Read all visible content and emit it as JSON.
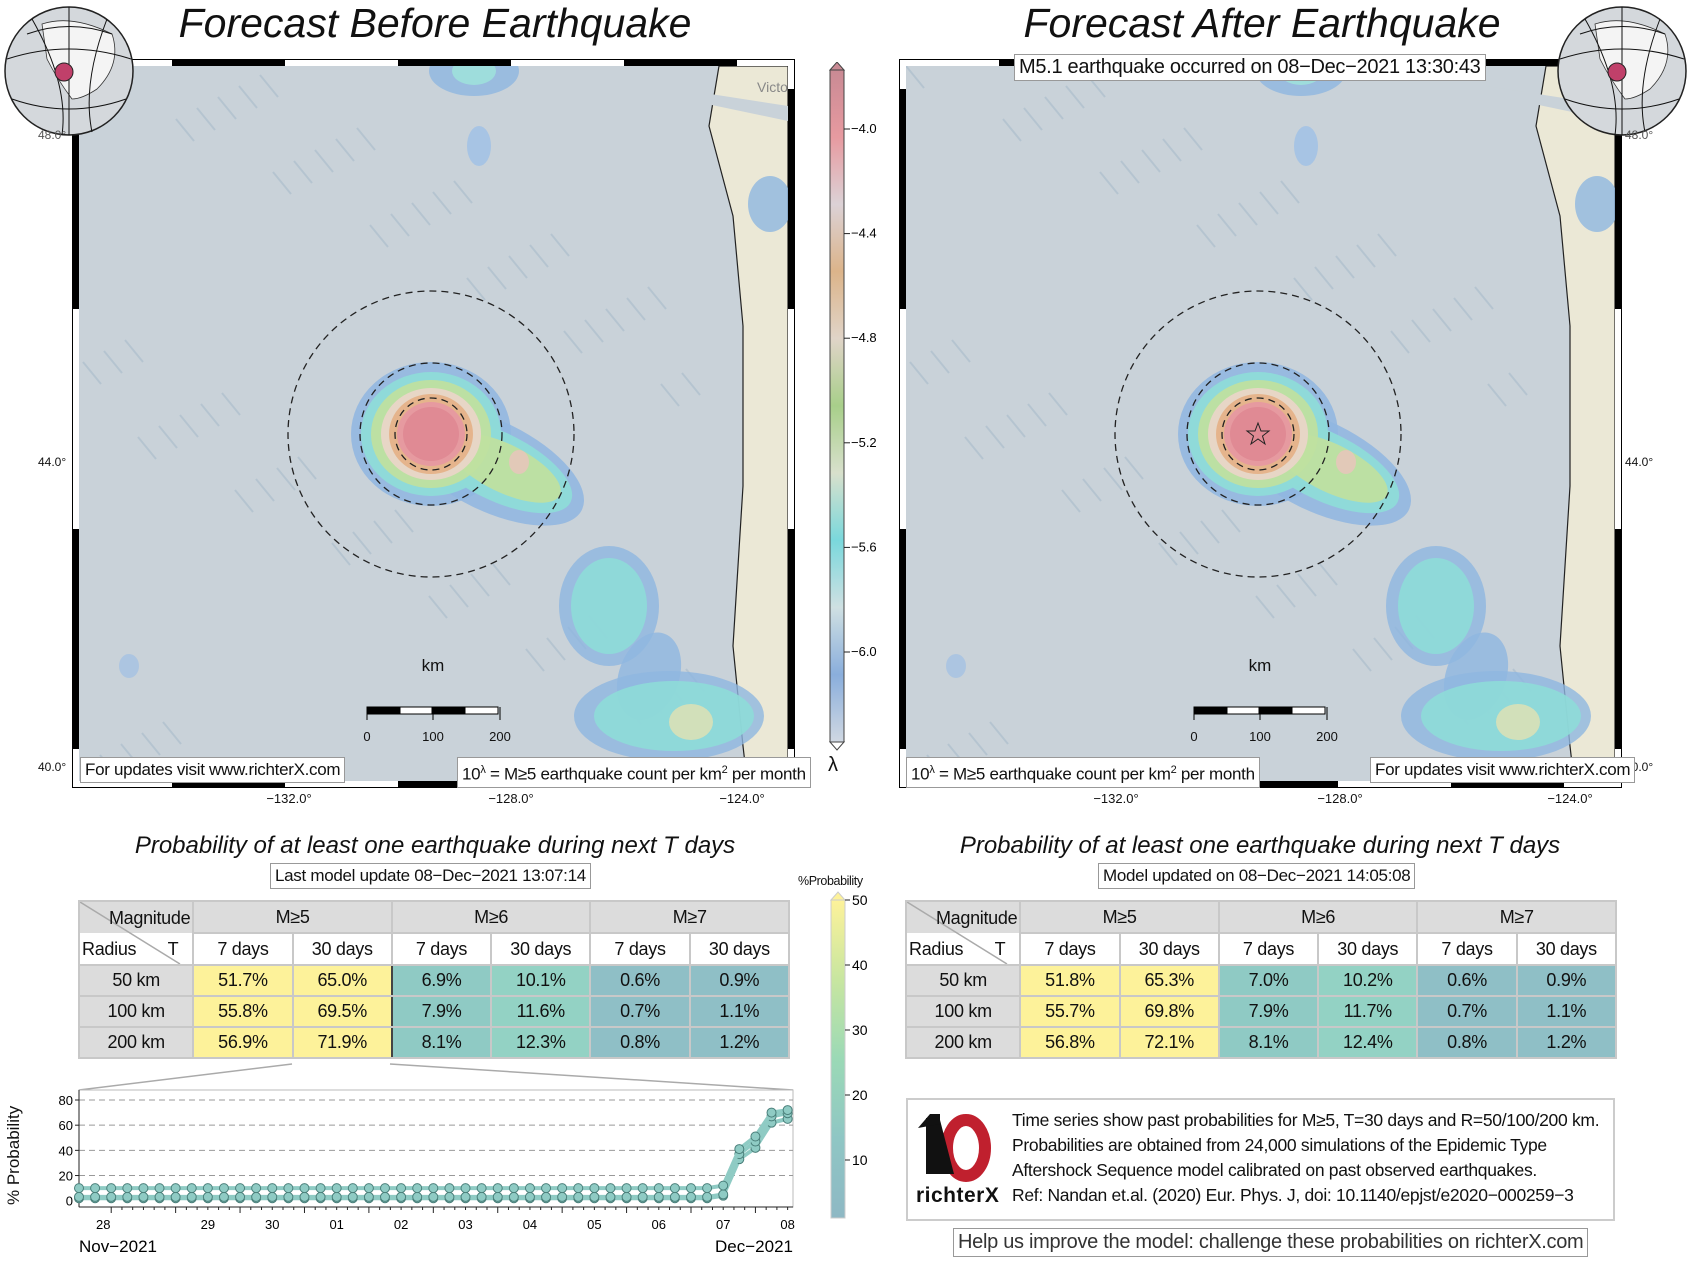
{
  "left_panel": {
    "title": "Forecast Before Earthquake",
    "footer_left": "For updates visit www.richterX.com",
    "footer_right_prefix": "10",
    "footer_right_sup": "λ",
    "footer_right_mid": " = M≥5 earthquake count per km",
    "footer_right_sup2": "2",
    "footer_right_suffix": " per month",
    "place_label": "Victo",
    "lat_labels": [
      "48.0°",
      "44.0°",
      "40.0°"
    ],
    "lon_labels": [
      "−132.0°",
      "−128.0°",
      "−124.0°"
    ],
    "scale_unit": "km",
    "scale_labels": [
      "0",
      "100",
      "200"
    ],
    "prob_title": "Probability of at least one earthquake during next T days",
    "update_label": "Last model update 08−Dec−2021 13:07:14",
    "table": {
      "corner_top": "Magnitude",
      "corner_bottom_left": "Radius",
      "corner_bottom_right": "T",
      "magnitudes": [
        "M≥5",
        "M≥6",
        "M≥7"
      ],
      "periods": [
        "7 days",
        "30 days",
        "7 days",
        "30 days",
        "7 days",
        "30 days"
      ],
      "rows": [
        {
          "radius": "50 km",
          "values": [
            "51.7%",
            "65.0%",
            "6.9%",
            "10.1%",
            "0.6%",
            "0.9%"
          ]
        },
        {
          "radius": "100 km",
          "values": [
            "55.8%",
            "69.5%",
            "7.9%",
            "11.6%",
            "0.7%",
            "1.1%"
          ]
        },
        {
          "radius": "200 km",
          "values": [
            "56.9%",
            "71.9%",
            "8.1%",
            "12.3%",
            "0.8%",
            "1.2%"
          ]
        }
      ]
    }
  },
  "right_panel": {
    "title": "Forecast After Earthquake",
    "event_banner": "M5.1 earthquake occurred on 08−Dec−2021 13:30:43",
    "footer_left_prefix": "10",
    "footer_left_sup": "λ",
    "footer_left_mid": " = M≥5 earthquake count per km",
    "footer_left_sup2": "2",
    "footer_left_suffix": " per month",
    "footer_right": "For updates visit www.richterX.com",
    "lat_labels": [
      "48.0°",
      "44.0°",
      "40.0°"
    ],
    "lon_labels": [
      "−132.0°",
      "−128.0°",
      "−124.0°"
    ],
    "scale_unit": "km",
    "scale_labels": [
      "0",
      "100",
      "200"
    ],
    "prob_title": "Probability of at least one earthquake during next T days",
    "update_label": "Model updated on 08−Dec−2021 14:05:08",
    "table": {
      "corner_top": "Magnitude",
      "corner_bottom_left": "Radius",
      "corner_bottom_right": "T",
      "magnitudes": [
        "M≥5",
        "M≥6",
        "M≥7"
      ],
      "periods": [
        "7 days",
        "30 days",
        "7 days",
        "30 days",
        "7 days",
        "30 days"
      ],
      "rows": [
        {
          "radius": "50 km",
          "values": [
            "51.8%",
            "65.3%",
            "7.0%",
            "10.2%",
            "0.6%",
            "0.9%"
          ]
        },
        {
          "radius": "100 km",
          "values": [
            "55.7%",
            "69.8%",
            "7.9%",
            "11.7%",
            "0.7%",
            "1.1%"
          ]
        },
        {
          "radius": "200 km",
          "values": [
            "56.8%",
            "72.1%",
            "8.1%",
            "12.4%",
            "0.8%",
            "1.2%"
          ]
        }
      ]
    },
    "info_lines": [
      "Time series show past probabilities for M≥5, T=30 days and R=50/100/200 km.",
      "Probabilities are obtained from 24,000 simulations of the Epidemic Type",
      "Aftershock Sequence model calibrated on past observed earthquakes.",
      "Ref: Nandan et.al. (2020) Eur. Phys. J, doi: 10.1140/epjst/e2020−000259−3"
    ],
    "logo_text": "richterX",
    "help_text": "Help us improve the model: challenge these probabilities on richterX.com"
  },
  "lambda_colorbar": {
    "label": "λ",
    "ticks": [
      "−4.0",
      "−4.4",
      "−4.8",
      "−5.2",
      "−5.6",
      "−6.0"
    ],
    "colors": [
      "#c98a94",
      "#e79aa0",
      "#dcd2d6",
      "#dcb48a",
      "#e0d4c8",
      "#a8cf8a",
      "#d8e0cc",
      "#7ad8dc",
      "#cfe0e2",
      "#8aaedc",
      "#d0d8e2"
    ]
  },
  "probability_colorbar": {
    "label": "%Probability",
    "ticks": [
      "50",
      "40",
      "30",
      "20",
      "10"
    ],
    "colors": [
      "#fdf29a",
      "#c8e6a0",
      "#9bd9b6",
      "#8fc6c4",
      "#8eb8c4"
    ]
  },
  "chart_data": {
    "type": "line",
    "ylabel": "% Probability",
    "ylim": [
      -5,
      80
    ],
    "yticks": [
      "0",
      "20",
      "40",
      "60",
      "80"
    ],
    "xlim": [
      "2021-11-27T12:00",
      "2021-12-08T14:00"
    ],
    "xtick_labels": [
      "28",
      "29",
      "30",
      "01",
      "02",
      "03",
      "04",
      "05",
      "06",
      "07",
      "08"
    ],
    "month_labels": [
      "Nov−2021",
      "Dec−2021"
    ],
    "grid": "horizontal dashed",
    "x": [
      "2021-11-27T12:00",
      "2021-11-27T18:00",
      "2021-11-28T00:00",
      "2021-11-28T06:00",
      "2021-11-28T12:00",
      "2021-11-28T18:00",
      "2021-11-29T00:00",
      "2021-11-29T06:00",
      "2021-11-29T12:00",
      "2021-11-29T18:00",
      "2021-11-30T00:00",
      "2021-11-30T06:00",
      "2021-11-30T12:00",
      "2021-11-30T18:00",
      "2021-12-01T00:00",
      "2021-12-01T06:00",
      "2021-12-01T12:00",
      "2021-12-01T18:00",
      "2021-12-02T00:00",
      "2021-12-02T06:00",
      "2021-12-02T12:00",
      "2021-12-02T18:00",
      "2021-12-03T00:00",
      "2021-12-03T06:00",
      "2021-12-03T12:00",
      "2021-12-03T18:00",
      "2021-12-04T00:00",
      "2021-12-04T06:00",
      "2021-12-04T12:00",
      "2021-12-04T18:00",
      "2021-12-05T00:00",
      "2021-12-05T06:00",
      "2021-12-05T12:00",
      "2021-12-05T18:00",
      "2021-12-06T00:00",
      "2021-12-06T06:00",
      "2021-12-06T12:00",
      "2021-12-06T18:00",
      "2021-12-07T00:00",
      "2021-12-07T06:00",
      "2021-12-07T12:00",
      "2021-12-07T18:00",
      "2021-12-08T00:00",
      "2021-12-08T06:00",
      "2021-12-08T12:00"
    ],
    "series": [
      {
        "values": [
          2,
          2,
          2,
          2,
          2,
          2,
          2,
          2,
          2,
          2,
          2,
          2,
          2,
          2,
          2,
          2,
          2,
          2,
          2,
          2,
          2,
          2,
          2,
          2,
          2,
          2,
          2,
          2,
          2,
          2,
          2,
          2,
          2,
          2,
          2,
          2,
          2,
          2,
          2,
          2,
          4,
          33,
          42,
          62,
          65
        ]
      },
      {
        "values": [
          3,
          3,
          3,
          3,
          3,
          3,
          3,
          3,
          3,
          3,
          3,
          3,
          3,
          3,
          3,
          3,
          3,
          3,
          3,
          3,
          3,
          3,
          3,
          3,
          3,
          3,
          3,
          3,
          3,
          3,
          3,
          3,
          3,
          3,
          3,
          3,
          3,
          3,
          3,
          3,
          5,
          37,
          47,
          67,
          69.5
        ]
      },
      {
        "values": [
          10,
          10,
          10,
          10,
          10,
          10,
          10,
          10,
          10,
          10,
          10,
          10,
          10,
          10,
          10,
          10,
          10,
          10,
          10,
          10,
          10,
          10,
          10,
          10,
          10,
          10,
          10,
          10,
          10,
          10,
          10,
          10,
          10,
          10,
          10,
          10,
          10,
          10,
          10,
          10,
          12,
          41,
          51,
          70,
          72
        ]
      }
    ],
    "line_color": "#8fcbc4"
  }
}
